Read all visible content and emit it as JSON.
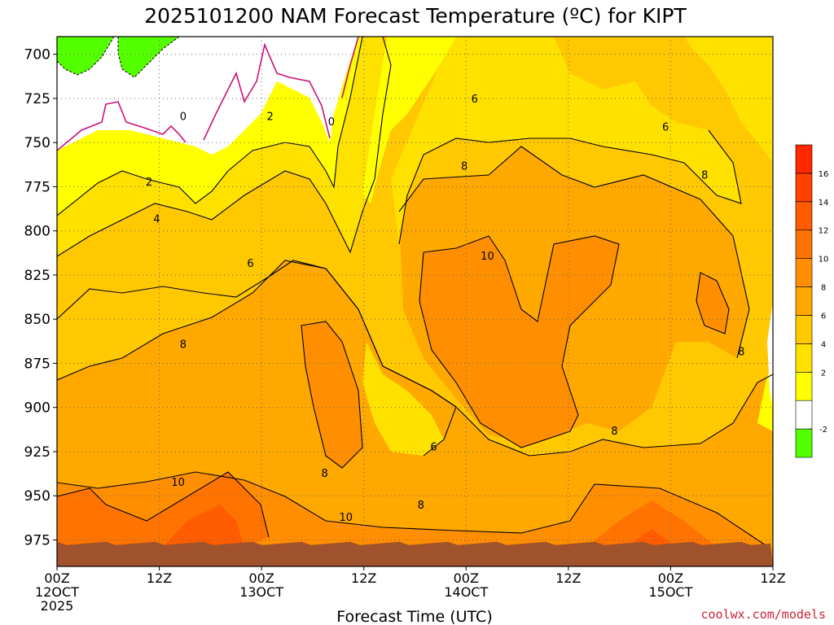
{
  "chart_data": {
    "type": "heatmap",
    "title": "2025101200 NAM Forecast Temperature (ºC) for KIPT",
    "xlabel": "Forecast Time (UTC)",
    "ylabel": "",
    "credit": "coolwx.com/models",
    "x_ticks": [
      {
        "hour": 0,
        "lines": [
          "00Z",
          "12OCT",
          "2025"
        ]
      },
      {
        "hour": 12,
        "lines": [
          "12Z"
        ]
      },
      {
        "hour": 24,
        "lines": [
          "00Z",
          "13OCT"
        ]
      },
      {
        "hour": 36,
        "lines": [
          "12Z"
        ]
      },
      {
        "hour": 48,
        "lines": [
          "00Z",
          "14OCT"
        ]
      },
      {
        "hour": 60,
        "lines": [
          "12Z"
        ]
      },
      {
        "hour": 72,
        "lines": [
          "00Z",
          "15OCT"
        ]
      },
      {
        "hour": 84,
        "lines": [
          "12Z"
        ]
      }
    ],
    "xlim": [
      0,
      84
    ],
    "y_ticks": [
      700,
      725,
      750,
      775,
      800,
      825,
      850,
      875,
      900,
      925,
      950,
      975
    ],
    "ylim": [
      690,
      990
    ],
    "surface_pressure_hpa": 977,
    "colorbar": {
      "labels": [
        "-2",
        "2",
        "4",
        "6",
        "8",
        "10",
        "12",
        "14",
        "16"
      ],
      "levels": [
        -4,
        -2,
        0,
        2,
        4,
        6,
        8,
        10,
        12,
        14,
        16,
        18
      ],
      "colors": [
        "#54ff00",
        "#ffffff",
        "#ffff00",
        "#ffe100",
        "#ffc800",
        "#ffa800",
        "#ff8f00",
        "#ff7400",
        "#ff5c00",
        "#ff4000",
        "#ff2800"
      ]
    },
    "ground_color": "#a0522d",
    "contour_labels": [
      {
        "text": "0",
        "hour": 14.8,
        "hpa": 735
      },
      {
        "text": "0",
        "hour": 32.2,
        "hpa": 738
      },
      {
        "text": "2",
        "hour": 25.0,
        "hpa": 735
      },
      {
        "text": "2",
        "hour": 10.8,
        "hpa": 772
      },
      {
        "text": "4",
        "hour": 11.7,
        "hpa": 793
      },
      {
        "text": "6",
        "hour": 22.7,
        "hpa": 818
      },
      {
        "text": "6",
        "hour": 49.0,
        "hpa": 725
      },
      {
        "text": "6",
        "hour": 71.4,
        "hpa": 741
      },
      {
        "text": "6",
        "hour": 44.2,
        "hpa": 922
      },
      {
        "text": "8",
        "hour": 14.8,
        "hpa": 864
      },
      {
        "text": "8",
        "hour": 47.8,
        "hpa": 763
      },
      {
        "text": "8",
        "hour": 76.0,
        "hpa": 768
      },
      {
        "text": "8",
        "hour": 80.3,
        "hpa": 868
      },
      {
        "text": "8",
        "hour": 65.4,
        "hpa": 913
      },
      {
        "text": "8",
        "hour": 31.4,
        "hpa": 937
      },
      {
        "text": "8",
        "hour": 42.7,
        "hpa": 955
      },
      {
        "text": "10",
        "hour": 50.5,
        "hpa": 814
      },
      {
        "text": "10",
        "hour": 14.2,
        "hpa": 942
      },
      {
        "text": "10",
        "hour": 33.9,
        "hpa": 962
      }
    ]
  }
}
